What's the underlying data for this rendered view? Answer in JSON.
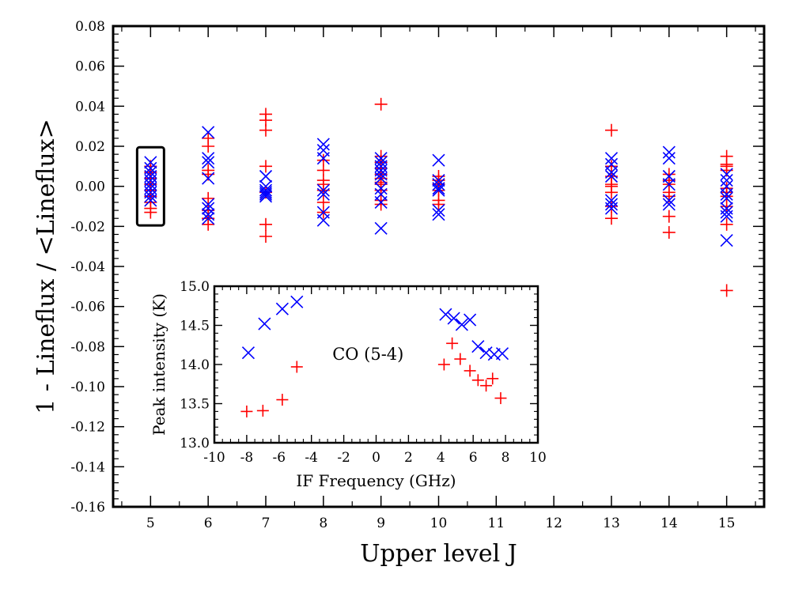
{
  "chart_data": [
    {
      "type": "scatter",
      "title": "",
      "xlabel": "Upper level J",
      "ylabel": "1 - Lineflux / <Lineflux>",
      "xlim": [
        4.35,
        15.65
      ],
      "ylim": [
        -0.16,
        0.08
      ],
      "x_categories": [
        5,
        6,
        7,
        8,
        9,
        10,
        11,
        12,
        13,
        14,
        15
      ],
      "x_tick_labels": [
        "5",
        "6",
        "7",
        "8",
        "9",
        "10",
        "11",
        "12",
        "13",
        "14",
        "15"
      ],
      "y_ticks": [
        -0.16,
        -0.14,
        -0.12,
        -0.1,
        -0.08,
        -0.06,
        -0.04,
        -0.02,
        0.0,
        0.02,
        0.04,
        0.06,
        0.08
      ],
      "y_tick_labels": [
        "-0.16",
        "-0.14",
        "-0.12",
        "-0.10",
        "-0.08",
        "-0.06",
        "-0.04",
        "-0.02",
        "0.00",
        "0.02",
        "0.04",
        "0.06",
        "0.08"
      ],
      "highlight_box": {
        "x_center": 5,
        "y_range": [
          -0.0195,
          0.0195
        ]
      },
      "series": [
        {
          "name": "plus",
          "marker": "+",
          "color": "#ff0000",
          "points": [
            [
              5,
              0.01
            ],
            [
              5,
              0.007
            ],
            [
              5,
              0.004
            ],
            [
              5,
              0.001
            ],
            [
              5,
              -0.002
            ],
            [
              5,
              -0.005
            ],
            [
              5,
              -0.008
            ],
            [
              5,
              -0.011
            ],
            [
              5,
              -0.013
            ],
            [
              6,
              0.024
            ],
            [
              6,
              0.02
            ],
            [
              6,
              0.008
            ],
            [
              6,
              0.006
            ],
            [
              6,
              -0.006
            ],
            [
              6,
              -0.012
            ],
            [
              6,
              -0.016
            ],
            [
              6,
              -0.019
            ],
            [
              7,
              0.036
            ],
            [
              7,
              0.033
            ],
            [
              7,
              0.028
            ],
            [
              7,
              0.01
            ],
            [
              7,
              -0.003
            ],
            [
              7,
              -0.019
            ],
            [
              7,
              -0.025
            ],
            [
              8,
              0.013
            ],
            [
              8,
              0.008
            ],
            [
              8,
              0.003
            ],
            [
              8,
              0.001
            ],
            [
              8,
              -0.002
            ],
            [
              8,
              -0.008
            ],
            [
              8,
              -0.013
            ],
            [
              9,
              0.041
            ],
            [
              9,
              0.015
            ],
            [
              9,
              0.012
            ],
            [
              9,
              0.009
            ],
            [
              9,
              0.006
            ],
            [
              9,
              0.004
            ],
            [
              9,
              0.002
            ],
            [
              9,
              0.001
            ],
            [
              9,
              -0.002
            ],
            [
              9,
              -0.007
            ],
            [
              9,
              -0.009
            ],
            [
              10,
              0.005
            ],
            [
              10,
              0.003
            ],
            [
              10,
              0.001
            ],
            [
              10,
              -0.002
            ],
            [
              10,
              -0.007
            ],
            [
              10,
              -0.009
            ],
            [
              13,
              0.028
            ],
            [
              13,
              0.01
            ],
            [
              13,
              0.005
            ],
            [
              13,
              0.001
            ],
            [
              13,
              0.0
            ],
            [
              13,
              -0.003
            ],
            [
              13,
              -0.01
            ],
            [
              13,
              -0.016
            ],
            [
              14,
              0.006
            ],
            [
              14,
              0.003
            ],
            [
              14,
              0.001
            ],
            [
              14,
              -0.003
            ],
            [
              14,
              -0.005
            ],
            [
              14,
              -0.015
            ],
            [
              14,
              -0.023
            ],
            [
              15,
              0.015
            ],
            [
              15,
              0.011
            ],
            [
              15,
              0.01
            ],
            [
              15,
              0.008
            ],
            [
              15,
              -0.001
            ],
            [
              15,
              -0.003
            ],
            [
              15,
              -0.005
            ],
            [
              15,
              -0.01
            ],
            [
              15,
              -0.019
            ],
            [
              15,
              -0.052
            ]
          ]
        },
        {
          "name": "cross",
          "marker": "x",
          "color": "#0000ff",
          "points": [
            [
              5,
              0.012
            ],
            [
              5,
              0.009
            ],
            [
              5,
              0.007
            ],
            [
              5,
              0.005
            ],
            [
              5,
              0.003
            ],
            [
              5,
              0.001
            ],
            [
              5,
              -0.001
            ],
            [
              5,
              -0.003
            ],
            [
              5,
              -0.005
            ],
            [
              5,
              -0.007
            ],
            [
              6,
              0.027
            ],
            [
              6,
              0.014
            ],
            [
              6,
              0.012
            ],
            [
              6,
              0.004
            ],
            [
              6,
              -0.009
            ],
            [
              6,
              -0.011
            ],
            [
              6,
              -0.014
            ],
            [
              6,
              -0.016
            ],
            [
              7,
              0.005
            ],
            [
              7,
              0.0
            ],
            [
              7,
              -0.002
            ],
            [
              7,
              -0.003
            ],
            [
              7,
              -0.004
            ],
            [
              7,
              -0.005
            ],
            [
              8,
              0.021
            ],
            [
              8,
              0.018
            ],
            [
              8,
              0.014
            ],
            [
              8,
              -0.002
            ],
            [
              8,
              -0.004
            ],
            [
              8,
              -0.013
            ],
            [
              8,
              -0.017
            ],
            [
              9,
              0.014
            ],
            [
              9,
              0.012
            ],
            [
              9,
              0.01
            ],
            [
              9,
              0.008
            ],
            [
              9,
              0.006
            ],
            [
              9,
              0.004
            ],
            [
              9,
              -0.001
            ],
            [
              9,
              -0.004
            ],
            [
              9,
              -0.008
            ],
            [
              9,
              -0.021
            ],
            [
              10,
              0.013
            ],
            [
              10,
              0.003
            ],
            [
              10,
              0.001
            ],
            [
              10,
              -0.001
            ],
            [
              10,
              -0.002
            ],
            [
              10,
              -0.012
            ],
            [
              10,
              -0.014
            ],
            [
              13,
              0.014
            ],
            [
              13,
              0.011
            ],
            [
              13,
              0.007
            ],
            [
              13,
              0.005
            ],
            [
              13,
              -0.007
            ],
            [
              13,
              -0.009
            ],
            [
              13,
              -0.011
            ],
            [
              14,
              0.017
            ],
            [
              14,
              0.014
            ],
            [
              14,
              0.005
            ],
            [
              14,
              0.001
            ],
            [
              14,
              -0.007
            ],
            [
              14,
              -0.009
            ],
            [
              15,
              0.006
            ],
            [
              15,
              0.003
            ],
            [
              15,
              0.0
            ],
            [
              15,
              -0.004
            ],
            [
              15,
              -0.006
            ],
            [
              15,
              -0.011
            ],
            [
              15,
              -0.013
            ],
            [
              15,
              -0.015
            ],
            [
              15,
              -0.027
            ]
          ]
        }
      ]
    },
    {
      "type": "scatter",
      "title": "",
      "annotation": "CO (5-4)",
      "xlabel": "IF Frequency (GHz)",
      "ylabel": "Peak intensity (K)",
      "xlim": [
        -10,
        10
      ],
      "ylim": [
        13.0,
        15.0
      ],
      "x_ticks": [
        -10,
        -8,
        -6,
        -4,
        -2,
        0,
        2,
        4,
        6,
        8,
        10
      ],
      "x_tick_labels": [
        "-10",
        "-8",
        "-6",
        "-4",
        "-2",
        "0",
        "2",
        "4",
        "6",
        "8",
        "10"
      ],
      "y_ticks": [
        13.0,
        13.5,
        14.0,
        14.5,
        15.0
      ],
      "y_tick_labels": [
        "13.0",
        "13.5",
        "14.0",
        "14.5",
        "15.0"
      ],
      "series": [
        {
          "name": "cross",
          "marker": "x",
          "color": "#0000ff",
          "points": [
            [
              -7.9,
              14.15
            ],
            [
              -6.9,
              14.52
            ],
            [
              -5.8,
              14.71
            ],
            [
              -4.9,
              14.8
            ],
            [
              4.3,
              14.64
            ],
            [
              4.8,
              14.59
            ],
            [
              5.3,
              14.51
            ],
            [
              5.8,
              14.57
            ],
            [
              6.3,
              14.23
            ],
            [
              6.8,
              14.15
            ],
            [
              7.3,
              14.13
            ],
            [
              7.8,
              14.14
            ]
          ]
        },
        {
          "name": "plus",
          "marker": "+",
          "color": "#ff0000",
          "points": [
            [
              -8.0,
              13.4
            ],
            [
              -7.0,
              13.41
            ],
            [
              -5.8,
              13.55
            ],
            [
              -4.9,
              13.97
            ],
            [
              4.2,
              14.0
            ],
            [
              4.7,
              14.27
            ],
            [
              5.2,
              14.07
            ],
            [
              5.8,
              13.92
            ],
            [
              6.3,
              13.8
            ],
            [
              6.8,
              13.73
            ],
            [
              7.2,
              13.82
            ],
            [
              7.7,
              13.57
            ]
          ]
        }
      ]
    }
  ]
}
